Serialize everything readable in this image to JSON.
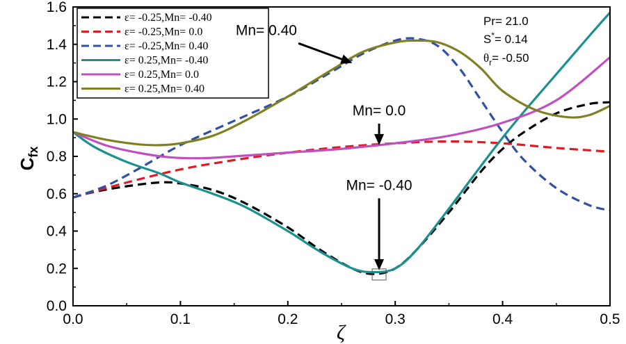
{
  "chart_data": {
    "type": "line",
    "title": "",
    "xlabel": "ζ",
    "ylabel": "C",
    "ylabel_sub": "fx",
    "xlim": [
      0,
      0.5
    ],
    "ylim": [
      0,
      1.6
    ],
    "xticks": [
      0,
      0.1,
      0.2,
      0.3,
      0.4,
      0.5
    ],
    "xtick_labels": [
      "0.0",
      "0.1",
      "0.2",
      "0.3",
      "0.4",
      "0.5"
    ],
    "yticks": [
      0,
      0.2,
      0.4,
      0.6,
      0.8,
      1.0,
      1.2,
      1.4,
      1.6
    ],
    "ytick_labels": [
      "0.0",
      "0.2",
      "0.4",
      "0.6",
      "0.8",
      "1.0",
      "1.2",
      "1.4",
      "1.6"
    ],
    "legend_position": "top-left",
    "series": [
      {
        "name": "ε= -0.25,Mn= -0.40",
        "color": "#000000",
        "dash": true,
        "x": [
          0,
          0.02,
          0.05,
          0.08,
          0.1,
          0.13,
          0.16,
          0.2,
          0.23,
          0.26,
          0.28,
          0.3,
          0.32,
          0.35,
          0.38,
          0.4,
          0.42,
          0.45,
          0.48,
          0.5
        ],
        "y": [
          0.58,
          0.61,
          0.64,
          0.66,
          0.655,
          0.62,
          0.55,
          0.42,
          0.3,
          0.2,
          0.17,
          0.2,
          0.3,
          0.5,
          0.72,
          0.84,
          0.93,
          1.03,
          1.08,
          1.09
        ]
      },
      {
        "name": "ε= -0.25,Mn= 0.0",
        "color": "#e01b24",
        "dash": true,
        "x": [
          0,
          0.05,
          0.1,
          0.15,
          0.2,
          0.25,
          0.3,
          0.35,
          0.4,
          0.45,
          0.5
        ],
        "y": [
          0.58,
          0.66,
          0.73,
          0.78,
          0.82,
          0.85,
          0.87,
          0.88,
          0.87,
          0.845,
          0.825
        ]
      },
      {
        "name": "ε= -0.25,Mn= 0.40",
        "color": "#3050a8",
        "dash": true,
        "x": [
          0,
          0.03,
          0.06,
          0.1,
          0.15,
          0.2,
          0.24,
          0.27,
          0.3,
          0.32,
          0.34,
          0.36,
          0.38,
          0.4,
          0.42,
          0.45,
          0.48,
          0.5
        ],
        "y": [
          0.58,
          0.64,
          0.73,
          0.86,
          0.99,
          1.12,
          1.25,
          1.35,
          1.42,
          1.43,
          1.39,
          1.27,
          1.1,
          0.93,
          0.78,
          0.63,
          0.54,
          0.51
        ]
      },
      {
        "name": "ε= 0.25,Mn= -0.40",
        "color": "#1a9090",
        "dash": false,
        "x": [
          0,
          0.02,
          0.05,
          0.08,
          0.1,
          0.13,
          0.16,
          0.2,
          0.23,
          0.26,
          0.28,
          0.3,
          0.32,
          0.35,
          0.38,
          0.4,
          0.42,
          0.45,
          0.48,
          0.5
        ],
        "y": [
          0.93,
          0.85,
          0.77,
          0.71,
          0.66,
          0.6,
          0.53,
          0.4,
          0.29,
          0.2,
          0.18,
          0.2,
          0.3,
          0.52,
          0.75,
          0.9,
          1.04,
          1.24,
          1.44,
          1.57
        ]
      },
      {
        "name": "ε= 0.25,Mn= 0.0",
        "color": "#c050c0",
        "dash": false,
        "x": [
          0,
          0.03,
          0.06,
          0.09,
          0.12,
          0.15,
          0.2,
          0.25,
          0.3,
          0.35,
          0.4,
          0.45,
          0.5
        ],
        "y": [
          0.93,
          0.86,
          0.82,
          0.795,
          0.79,
          0.8,
          0.82,
          0.84,
          0.87,
          0.91,
          0.98,
          1.1,
          1.33
        ]
      },
      {
        "name": "ε= 0.25,Mn= 0.40",
        "color": "#808020",
        "dash": false,
        "x": [
          0,
          0.03,
          0.06,
          0.08,
          0.1,
          0.13,
          0.16,
          0.2,
          0.24,
          0.27,
          0.3,
          0.32,
          0.34,
          0.36,
          0.38,
          0.4,
          0.43,
          0.46,
          0.48,
          0.5
        ],
        "y": [
          0.93,
          0.89,
          0.865,
          0.86,
          0.87,
          0.91,
          0.99,
          1.12,
          1.26,
          1.36,
          1.41,
          1.42,
          1.41,
          1.36,
          1.27,
          1.15,
          1.05,
          1.01,
          1.02,
          1.07
        ]
      }
    ],
    "annotations": [
      {
        "text": "Mn= 0.40",
        "x": 0.18,
        "y": 1.45,
        "target_x": 0.26,
        "target_y": 1.3
      },
      {
        "text": "Mn= 0.0",
        "x": 0.285,
        "y": 1.02,
        "target_x": 0.285,
        "target_y": 0.86
      },
      {
        "text": "Mn= -0.40",
        "x": 0.285,
        "y": 0.62,
        "target_x": 0.285,
        "target_y": 0.19
      }
    ],
    "params": {
      "pr": "Pr= 21.0",
      "s_prefix": "S",
      "s_sup": "*",
      "s_value": "= 0.14",
      "theta_prefix": "θ",
      "theta_sub": "r",
      "theta_value": "= -0.50"
    }
  }
}
